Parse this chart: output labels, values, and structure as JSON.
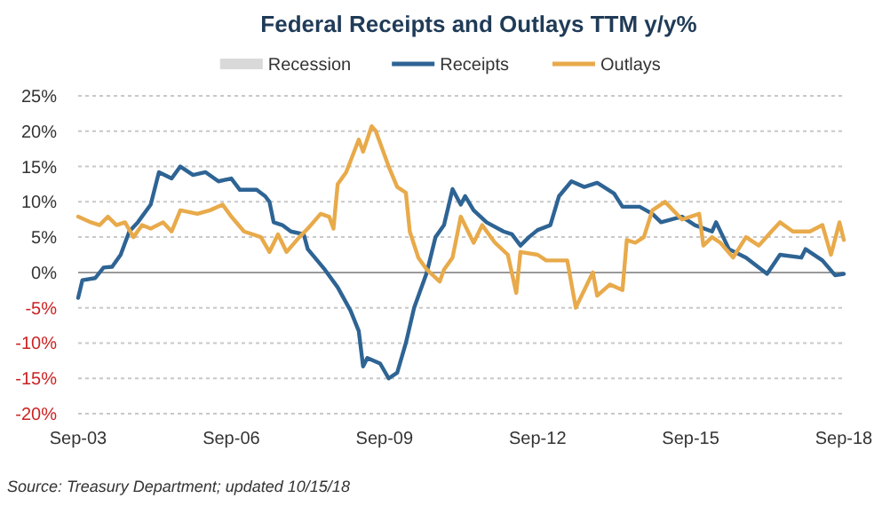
{
  "chart_data": {
    "type": "line",
    "title": "Federal Receipts and Outlays TTM y/y%",
    "xlim": [
      "2003-09",
      "2018-09"
    ],
    "xticks": [
      {
        "value": "2003-09",
        "label": "Sep-03"
      },
      {
        "value": "2006-09",
        "label": "Sep-06"
      },
      {
        "value": "2009-09",
        "label": "Sep-09"
      },
      {
        "value": "2012-09",
        "label": "Sep-12"
      },
      {
        "value": "2015-09",
        "label": "Sep-15"
      },
      {
        "value": "2018-09",
        "label": "Sep-18"
      }
    ],
    "ylim": [
      -20,
      25
    ],
    "yticks": [
      {
        "value": -20,
        "label": "-20%"
      },
      {
        "value": -15,
        "label": "-15%"
      },
      {
        "value": -10,
        "label": "-10%"
      },
      {
        "value": -5,
        "label": "-5%"
      },
      {
        "value": 0,
        "label": "0%"
      },
      {
        "value": 5,
        "label": "5%"
      },
      {
        "value": 10,
        "label": "10%"
      },
      {
        "value": 15,
        "label": "15%"
      },
      {
        "value": 20,
        "label": "20%"
      },
      {
        "value": 25,
        "label": "25%"
      }
    ],
    "grid": "y",
    "legend": "top",
    "line_style": "solid",
    "series": [
      {
        "name": "Recession",
        "type": "area",
        "color": "#d9d9d9"
      },
      {
        "name": "Receipts",
        "color": "#2e6494",
        "x": [
          "2003-09",
          "2003-10",
          "2004-01",
          "2004-03",
          "2004-05",
          "2004-07",
          "2004-09",
          "2004-11",
          "2005-02",
          "2005-04",
          "2005-07",
          "2005-09",
          "2005-12",
          "2006-03",
          "2006-06",
          "2006-09",
          "2006-11",
          "2007-03",
          "2007-05",
          "2007-06",
          "2007-07",
          "2007-09",
          "2007-11",
          "2008-02",
          "2008-03",
          "2008-07",
          "2008-10",
          "2009-01",
          "2009-03",
          "2009-04",
          "2009-05",
          "2009-08",
          "2009-10",
          "2009-12",
          "2010-02",
          "2010-04",
          "2010-07",
          "2010-09",
          "2010-11",
          "2011-01",
          "2011-03",
          "2011-04",
          "2011-06",
          "2011-09",
          "2012-01",
          "2012-03",
          "2012-05",
          "2012-07",
          "2012-09",
          "2012-12",
          "2013-02",
          "2013-05",
          "2013-08",
          "2013-11",
          "2014-03",
          "2014-05",
          "2014-09",
          "2014-12",
          "2015-02",
          "2015-07",
          "2015-10",
          "2016-02",
          "2016-03",
          "2016-06",
          "2016-10",
          "2017-03",
          "2017-06",
          "2017-11",
          "2017-12",
          "2018-04",
          "2018-07",
          "2018-09"
        ],
        "values": [
          -3.6,
          -1.1,
          -0.8,
          0.7,
          0.8,
          2.5,
          5.8,
          7.1,
          9.6,
          14.2,
          13.3,
          15,
          13.8,
          14.2,
          12.9,
          13.3,
          11.7,
          11.7,
          10.8,
          10,
          7.1,
          6.7,
          5.8,
          5.4,
          3.3,
          0.4,
          -2.1,
          -5.4,
          -8.3,
          -13.3,
          -12.1,
          -12.9,
          -15,
          -14.2,
          -10,
          -5,
          0,
          5,
          6.7,
          11.8,
          9.6,
          10.8,
          8.8,
          7.1,
          5.8,
          5.4,
          3.8,
          5,
          6,
          6.7,
          10.8,
          12.9,
          12.1,
          12.7,
          11.2,
          9.3,
          9.3,
          8.3,
          7.1,
          7.9,
          6.7,
          5.8,
          7.1,
          3.3,
          2.1,
          -0.2,
          2.5,
          2.1,
          3.3,
          1.7,
          -0.4,
          -0.2
        ]
      },
      {
        "name": "Outlays",
        "color": "#e8aa4a",
        "x": [
          "2003-09",
          "2003-12",
          "2004-02",
          "2004-04",
          "2004-06",
          "2004-08",
          "2004-10",
          "2004-12",
          "2005-02",
          "2005-05",
          "2005-07",
          "2005-09",
          "2006-01",
          "2006-04",
          "2006-07",
          "2006-09",
          "2006-12",
          "2007-04",
          "2007-06",
          "2007-08",
          "2007-10",
          "2008-01",
          "2008-03",
          "2008-06",
          "2008-08",
          "2008-09",
          "2008-10",
          "2008-12",
          "2009-03",
          "2009-04",
          "2009-06",
          "2009-07",
          "2009-10",
          "2009-12",
          "2010-02",
          "2010-03",
          "2010-05",
          "2010-07",
          "2010-10",
          "2010-11",
          "2011-01",
          "2011-03",
          "2011-06",
          "2011-08",
          "2011-11",
          "2012-02",
          "2012-04",
          "2012-05",
          "2012-09",
          "2012-11",
          "2013-04",
          "2013-06",
          "2013-08",
          "2013-10",
          "2013-11",
          "2014-02",
          "2014-05",
          "2014-06",
          "2014-08",
          "2014-10",
          "2014-12",
          "2015-03",
          "2015-07",
          "2015-11",
          "2015-12",
          "2016-02",
          "2016-04",
          "2016-07",
          "2016-10",
          "2017-01",
          "2017-04",
          "2017-06",
          "2017-09",
          "2018-01",
          "2018-04",
          "2018-06",
          "2018-08",
          "2018-09"
        ],
        "values": [
          7.9,
          7.1,
          6.7,
          7.9,
          6.7,
          7.1,
          5,
          6.7,
          6.2,
          7.1,
          5.8,
          8.8,
          8.3,
          8.8,
          9.6,
          7.9,
          5.8,
          5,
          2.9,
          5.4,
          2.9,
          5,
          6.2,
          8.3,
          7.9,
          6.2,
          12.5,
          14.2,
          18.8,
          17.1,
          20.7,
          20,
          15,
          12.1,
          11.3,
          5.8,
          2.1,
          0.4,
          -1.3,
          0.4,
          2.1,
          7.9,
          4.2,
          6.7,
          4.2,
          2.5,
          -2.9,
          2.9,
          2.5,
          1.7,
          1.7,
          -5,
          -2.5,
          0,
          -3.3,
          -1.7,
          -2.5,
          4.6,
          4.2,
          5,
          8.8,
          10,
          7.5,
          8.3,
          3.8,
          5,
          4.2,
          2.1,
          5,
          3.8,
          5.8,
          7.1,
          5.8,
          5.8,
          6.7,
          2.5,
          7.1,
          4.6
        ]
      }
    ],
    "annotations": [
      "Source: Treasury Department; updated 10/15/18"
    ]
  }
}
